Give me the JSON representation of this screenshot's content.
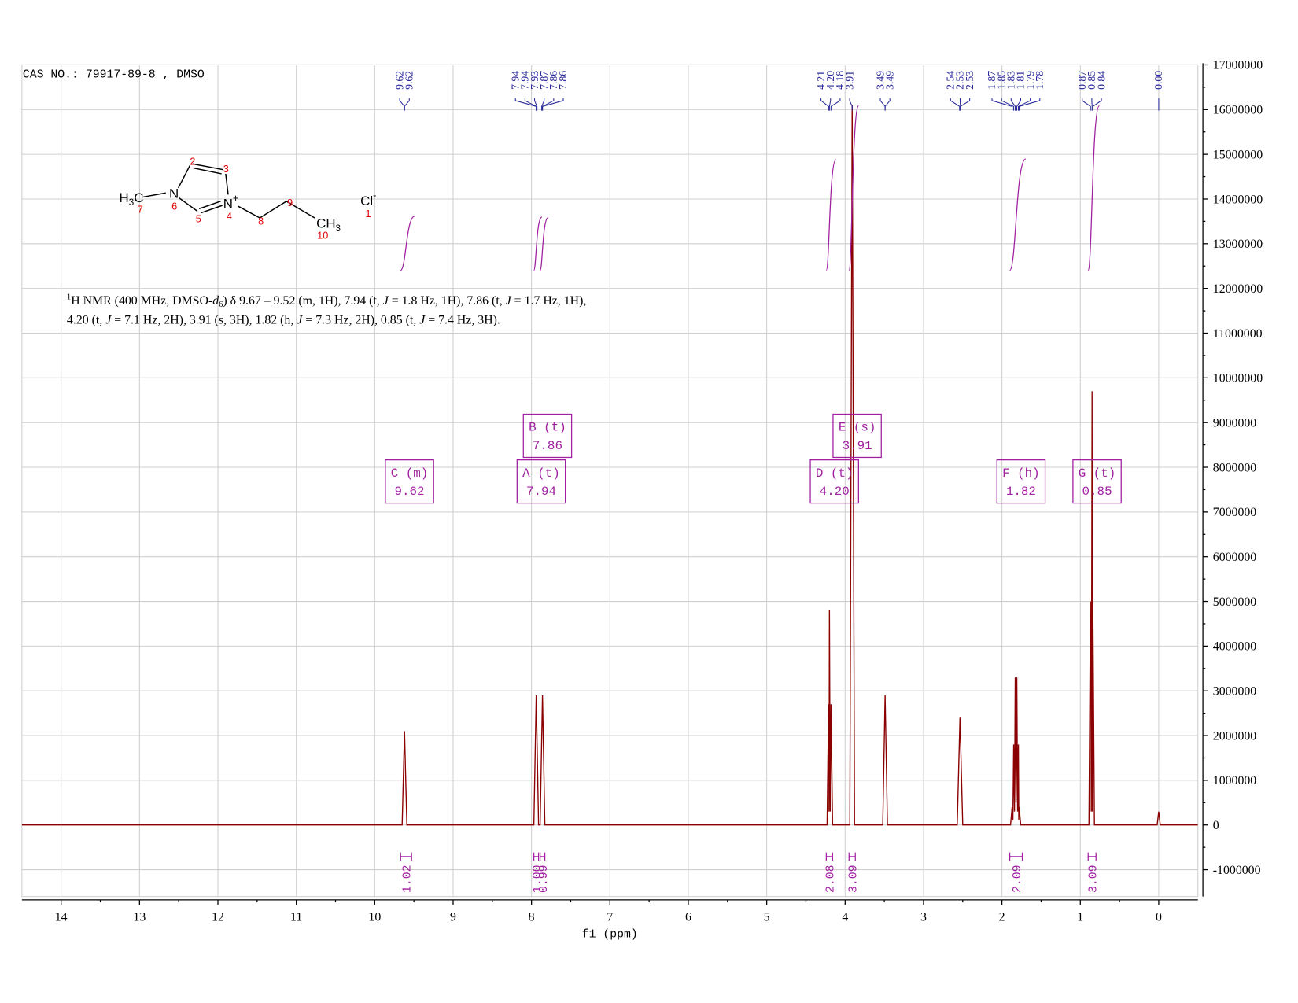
{
  "header": "CAS NO.: 79917-89-8 , DMSO",
  "structure": {
    "methyl_left": [
      "H",
      "3",
      "C"
    ],
    "n6": "N",
    "n4": "N",
    "plus": "+",
    "methyl_right": [
      "CH",
      "3"
    ],
    "chloride": "Cl",
    "minus": "-",
    "locants": [
      "2",
      "3",
      "6",
      "7",
      "5",
      "4",
      "8",
      "9",
      "10",
      "1"
    ]
  },
  "description": [
    [
      "1",
      "H NMR (400 MHz, DMSO-",
      "d",
      "6",
      ") δ 9.67 – 9.52 (m, 1H), 7.94 (t, ",
      "J",
      " = 1.8 Hz, 1H), 7.86 (t, ",
      "J",
      " = 1.7 Hz, 1H),"
    ],
    [
      "4.20 (t, ",
      "J",
      " = 7.1 Hz, 2H), 3.91 (s, 3H), 1.82 (h, ",
      "J",
      " = 7.3 Hz, 2H), 0.85 (t, ",
      "J",
      " = 7.4 Hz, 3H)."
    ]
  ],
  "chart_data": {
    "type": "line",
    "x_label": "f1 (ppm)",
    "x": [
      14.5,
      9.65,
      9.62,
      9.59,
      7.97,
      7.94,
      7.91,
      7.89,
      7.86,
      7.83,
      4.23,
      4.21,
      4.205,
      4.2,
      4.19,
      4.18,
      4.16,
      3.94,
      3.91,
      3.88,
      3.52,
      3.49,
      3.46,
      2.57,
      2.535,
      2.5,
      1.89,
      1.87,
      1.86,
      1.85,
      1.84,
      1.83,
      1.82,
      1.81,
      1.8,
      1.79,
      1.785,
      1.78,
      1.76,
      0.89,
      0.87,
      0.86,
      0.85,
      0.845,
      0.84,
      0.82,
      0.02,
      0,
      -0.02,
      -0.5
    ],
    "series": [
      {
        "color": "#8b0000",
        "values": [
          0,
          0,
          2100000,
          0,
          0,
          2900000,
          0,
          0,
          2900000,
          0,
          0,
          2700000,
          300000,
          4800000,
          300000,
          2700000,
          0,
          0,
          16100000,
          0,
          0,
          2900000,
          0,
          0,
          2400000,
          0,
          0,
          400000,
          100000,
          1800000,
          300000,
          3300000,
          500000,
          3300000,
          300000,
          1800000,
          100000,
          400000,
          0,
          0,
          5000000,
          300000,
          9700000,
          300000,
          4800000,
          0,
          0,
          300000,
          0,
          0
        ]
      }
    ],
    "xlim": [
      14.5,
      -0.5
    ],
    "xticks": [
      14,
      13,
      12,
      11,
      10,
      9,
      8,
      7,
      6,
      5,
      4,
      3,
      2,
      1,
      0
    ],
    "ylim": [
      -1600000,
      17000000
    ],
    "yticks": [
      -1000000,
      0,
      1000000,
      2000000,
      3000000,
      4000000,
      5000000,
      6000000,
      7000000,
      8000000,
      9000000,
      10000000,
      11000000,
      12000000,
      13000000,
      14000000,
      15000000,
      16000000,
      17000000
    ],
    "grid": true,
    "peak_labels": [
      [
        "9.62",
        "9.62"
      ],
      [
        "7.94",
        "7.94",
        "7.93",
        "7.87",
        "7.86",
        "7.86"
      ],
      [
        "4.21",
        "4.20",
        "4.18",
        "3.91"
      ],
      [
        "3.49",
        "3.49"
      ],
      [
        "2.54",
        "2.53",
        "2.53"
      ],
      [
        "1.87",
        "1.85",
        "1.83",
        "1.81",
        "1.79",
        "1.78"
      ],
      [
        "0.87",
        "0.85",
        "0.84"
      ],
      [
        "0.00"
      ]
    ],
    "multiplets": [
      {
        "label": "C (m)",
        "shift": "9.62"
      },
      {
        "label": "A (t)",
        "shift": "7.94"
      },
      {
        "label": "B (t)",
        "shift": "7.86"
      },
      {
        "label": "D (t)",
        "shift": "4.20"
      },
      {
        "label": "E (s)",
        "shift": "3.91"
      },
      {
        "label": "F (h)",
        "shift": "1.82"
      },
      {
        "label": "G (t)",
        "shift": "0.85"
      }
    ],
    "integrals": [
      {
        "range": [
          9.67,
          9.53
        ],
        "value": "1.02"
      },
      {
        "range": [
          7.97,
          7.91
        ],
        "value": "1.00"
      },
      {
        "range": [
          7.89,
          7.83
        ],
        "value": "0.99"
      },
      {
        "range": [
          4.24,
          4.16
        ],
        "value": "2.08"
      },
      {
        "range": [
          3.95,
          3.87
        ],
        "value": "3.09"
      },
      {
        "range": [
          1.9,
          1.74
        ],
        "value": "2.09"
      },
      {
        "range": [
          0.9,
          0.8
        ],
        "value": "3.09"
      }
    ]
  }
}
